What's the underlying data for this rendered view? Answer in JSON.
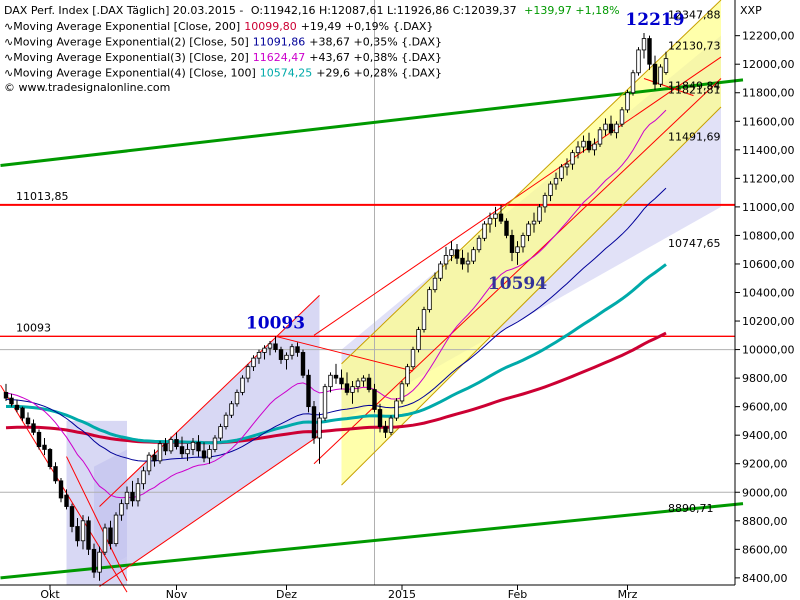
{
  "header": {
    "line1": {
      "name": "DAX Perf. Index [.DAX Täglich] 20.03.2015 -",
      "ohlc": "O:11942,16 H:12087,61 L:11926,86 C:12039,37",
      "chg": "+139,97 +1,18%"
    },
    "indicators": [
      {
        "label": "∿Moving Average Exponential [Close, 200]",
        "value": "10099,80",
        "chg": "+19,49 +0,19% {.DAX}",
        "color": "#cc0033"
      },
      {
        "label": "∿Moving Average Exponential(2) [Close, 50]",
        "value": "11091,86",
        "chg": "+38,67 +0,35% {.DAX}",
        "color": "#000099"
      },
      {
        "label": "∿Moving Average Exponential(3) [Close, 20]",
        "value": "11624,47",
        "chg": "+43,67 +0,38% {.DAX}",
        "color": "#cc00cc"
      },
      {
        "label": "∿Moving Average Exponential(4) [Close, 100]",
        "value": "10574,25",
        "chg": "+29,6 +0,28% {.DAX}",
        "color": "#00aaaa"
      }
    ],
    "source": "© www.tradesignalonline.com"
  },
  "chart_data": {
    "type": "candlestick",
    "y_axis_label": "XXP",
    "ylim": [
      8350,
      12450
    ],
    "y_ticks": [
      {
        "v": 8400,
        "label": "8400,00"
      },
      {
        "v": 8600,
        "label": "8600,00"
      },
      {
        "v": 8800,
        "label": "8800,00"
      },
      {
        "v": 9000,
        "label": "9000,00"
      },
      {
        "v": 9200,
        "label": "9200,00"
      },
      {
        "v": 9400,
        "label": "9400,00"
      },
      {
        "v": 9600,
        "label": "9600,00"
      },
      {
        "v": 9800,
        "label": "9800,00"
      },
      {
        "v": 10000,
        "label": "10000,00"
      },
      {
        "v": 10200,
        "label": "10200,00"
      },
      {
        "v": 10400,
        "label": "10400,00"
      },
      {
        "v": 10600,
        "label": "10600,00"
      },
      {
        "v": 10800,
        "label": "10800,00"
      },
      {
        "v": 11000,
        "label": "11000,00"
      },
      {
        "v": 11200,
        "label": "11200,00"
      },
      {
        "v": 11400,
        "label": "11400,00"
      },
      {
        "v": 11600,
        "label": "11600,00"
      },
      {
        "v": 11800,
        "label": "11800,00"
      },
      {
        "v": 12000,
        "label": "12000,00"
      },
      {
        "v": 12200,
        "label": "12200,00"
      }
    ],
    "x_labels": [
      {
        "i": 8,
        "label": "Okt"
      },
      {
        "i": 31,
        "label": "Nov"
      },
      {
        "i": 51,
        "label": "Dez"
      },
      {
        "i": 72,
        "label": "2015"
      },
      {
        "i": 93,
        "label": "Feb"
      },
      {
        "i": 113,
        "label": "Mrz"
      }
    ],
    "candles": [
      [
        9700,
        9760,
        9640,
        9660
      ],
      [
        9660,
        9690,
        9600,
        9620
      ],
      [
        9610,
        9650,
        9560,
        9580
      ],
      [
        9590,
        9600,
        9500,
        9520
      ],
      [
        9520,
        9560,
        9460,
        9480
      ],
      [
        9480,
        9510,
        9400,
        9420
      ],
      [
        9420,
        9440,
        9300,
        9320
      ],
      [
        9330,
        9380,
        9260,
        9300
      ],
      [
        9300,
        9310,
        9160,
        9180
      ],
      [
        9180,
        9210,
        9060,
        9080
      ],
      [
        9080,
        9100,
        8930,
        8960
      ],
      [
        8980,
        9020,
        8880,
        8900
      ],
      [
        8900,
        8920,
        8720,
        8760
      ],
      [
        8760,
        8820,
        8620,
        8660
      ],
      [
        8660,
        8840,
        8600,
        8800
      ],
      [
        8800,
        8830,
        8560,
        8600
      ],
      [
        8600,
        8640,
        8400,
        8440
      ],
      [
        8440,
        8620,
        8380,
        8580
      ],
      [
        8580,
        8780,
        8560,
        8750
      ],
      [
        8750,
        8800,
        8600,
        8640
      ],
      [
        8640,
        8860,
        8620,
        8840
      ],
      [
        8840,
        8950,
        8800,
        8920
      ],
      [
        8920,
        9040,
        8880,
        9000
      ],
      [
        9000,
        9080,
        8900,
        8940
      ],
      [
        8940,
        9100,
        8900,
        9060
      ],
      [
        9060,
        9180,
        9020,
        9150
      ],
      [
        9150,
        9280,
        9120,
        9260
      ],
      [
        9260,
        9300,
        9180,
        9220
      ],
      [
        9220,
        9360,
        9200,
        9340
      ],
      [
        9340,
        9380,
        9260,
        9290
      ],
      [
        9290,
        9390,
        9270,
        9370
      ],
      [
        9370,
        9420,
        9300,
        9320
      ],
      [
        9320,
        9390,
        9240,
        9270
      ],
      [
        9270,
        9340,
        9220,
        9300
      ],
      [
        9300,
        9380,
        9260,
        9350
      ],
      [
        9350,
        9400,
        9250,
        9290
      ],
      [
        9290,
        9350,
        9210,
        9240
      ],
      [
        9240,
        9330,
        9200,
        9300
      ],
      [
        9300,
        9400,
        9280,
        9380
      ],
      [
        9380,
        9480,
        9360,
        9460
      ],
      [
        9460,
        9560,
        9440,
        9540
      ],
      [
        9540,
        9640,
        9520,
        9620
      ],
      [
        9620,
        9720,
        9600,
        9700
      ],
      [
        9700,
        9820,
        9680,
        9800
      ],
      [
        9800,
        9900,
        9770,
        9880
      ],
      [
        9880,
        9960,
        9850,
        9940
      ],
      [
        9940,
        10000,
        9900,
        9980
      ],
      [
        9980,
        10030,
        9930,
        10010
      ],
      [
        10010,
        10060,
        9960,
        10040
      ],
      [
        10040,
        10093,
        9980,
        10000
      ],
      [
        10000,
        10020,
        9900,
        9930
      ],
      [
        9930,
        9980,
        9860,
        9960
      ],
      [
        9960,
        10040,
        9930,
        10020
      ],
      [
        10020,
        10050,
        9950,
        9980
      ],
      [
        9980,
        10000,
        9800,
        9820
      ],
      [
        9820,
        9860,
        9560,
        9600
      ],
      [
        9600,
        9640,
        9340,
        9380
      ],
      [
        9380,
        9560,
        9200,
        9520
      ],
      [
        9520,
        9760,
        9500,
        9740
      ],
      [
        9740,
        9840,
        9700,
        9820
      ],
      [
        9820,
        9900,
        9760,
        9800
      ],
      [
        9800,
        9860,
        9720,
        9760
      ],
      [
        9760,
        9840,
        9680,
        9700
      ],
      [
        9700,
        9780,
        9620,
        9740
      ],
      [
        9740,
        9800,
        9700,
        9780
      ],
      [
        9780,
        9820,
        9740,
        9800
      ],
      [
        9800,
        9830,
        9700,
        9720
      ],
      [
        9720,
        9760,
        9560,
        9580
      ],
      [
        9580,
        9620,
        9420,
        9460
      ],
      [
        9460,
        9500,
        9380,
        9420
      ],
      [
        9420,
        9540,
        9400,
        9520
      ],
      [
        9520,
        9660,
        9500,
        9640
      ],
      [
        9640,
        9780,
        9620,
        9760
      ],
      [
        9760,
        9900,
        9740,
        9880
      ],
      [
        9880,
        10020,
        9860,
        10000
      ],
      [
        10000,
        10160,
        9980,
        10140
      ],
      [
        10140,
        10300,
        10120,
        10280
      ],
      [
        10280,
        10440,
        10260,
        10420
      ],
      [
        10420,
        10540,
        10400,
        10500
      ],
      [
        10500,
        10620,
        10480,
        10600
      ],
      [
        10600,
        10720,
        10560,
        10660
      ],
      [
        10660,
        10760,
        10620,
        10700
      ],
      [
        10700,
        10740,
        10600,
        10640
      ],
      [
        10640,
        10700,
        10560,
        10600
      ],
      [
        10600,
        10680,
        10540,
        10620
      ],
      [
        10620,
        10720,
        10600,
        10700
      ],
      [
        10700,
        10800,
        10680,
        10780
      ],
      [
        10780,
        10900,
        10760,
        10880
      ],
      [
        10880,
        10960,
        10820,
        10920
      ],
      [
        10920,
        11000,
        10860,
        10950
      ],
      [
        10950,
        11013,
        10880,
        10900
      ],
      [
        10900,
        10920,
        10780,
        10800
      ],
      [
        10800,
        10840,
        10620,
        10680
      ],
      [
        10680,
        10760,
        10594,
        10720
      ],
      [
        10720,
        10820,
        10680,
        10800
      ],
      [
        10800,
        10900,
        10760,
        10880
      ],
      [
        10880,
        10960,
        10820,
        10900
      ],
      [
        10900,
        11020,
        10880,
        11000
      ],
      [
        11000,
        11100,
        10960,
        11080
      ],
      [
        11080,
        11180,
        11040,
        11160
      ],
      [
        11160,
        11240,
        11120,
        11200
      ],
      [
        11200,
        11300,
        11180,
        11280
      ],
      [
        11280,
        11340,
        11220,
        11300
      ],
      [
        11300,
        11400,
        11260,
        11380
      ],
      [
        11380,
        11460,
        11340,
        11420
      ],
      [
        11420,
        11500,
        11380,
        11460
      ],
      [
        11460,
        11520,
        11380,
        11400
      ],
      [
        11400,
        11480,
        11360,
        11440
      ],
      [
        11440,
        11560,
        11420,
        11540
      ],
      [
        11540,
        11620,
        11500,
        11580
      ],
      [
        11580,
        11640,
        11500,
        11520
      ],
      [
        11520,
        11600,
        11480,
        11580
      ],
      [
        11580,
        11700,
        11560,
        11680
      ],
      [
        11680,
        11820,
        11660,
        11800
      ],
      [
        11800,
        11960,
        11780,
        11940
      ],
      [
        11940,
        12120,
        11920,
        12100
      ],
      [
        12100,
        12219,
        12040,
        12180
      ],
      [
        12180,
        12200,
        11960,
        12000
      ],
      [
        12000,
        12060,
        11820,
        11860
      ],
      [
        11860,
        12000,
        11840,
        11980
      ],
      [
        11942,
        12087,
        11926,
        12039
      ]
    ],
    "levels": [
      {
        "name": "res-11013",
        "value": 11013.85,
        "label": "11013,85",
        "color": "#ff0000"
      },
      {
        "name": "res-10093",
        "value": 10093,
        "label": "10093",
        "color": "#ff0000"
      }
    ],
    "side_labels": [
      {
        "value": 12347.88,
        "label": "12347,88"
      },
      {
        "value": 12130.73,
        "label": "12130,73"
      },
      {
        "value": 11849.84,
        "label": "11849,84"
      },
      {
        "value": 11821.81,
        "label": "11821,81"
      },
      {
        "value": 11491.69,
        "label": "11491,69"
      },
      {
        "value": 10747.65,
        "label": "10747,65"
      },
      {
        "value": 8890.71,
        "label": "8890,71"
      }
    ],
    "annotations": [
      {
        "label": "12219",
        "i": 118,
        "value": 12219,
        "color": "#0000cc"
      },
      {
        "label": "10093",
        "i": 49,
        "value": 10093,
        "color": "#0000cc"
      },
      {
        "label": "10594",
        "i": 93,
        "value": 10594,
        "color": "#333399"
      }
    ],
    "colors": {
      "bull_candle": "#ffffff",
      "bear_candle": "#000000",
      "candle_outline": "#000000",
      "ema200": "#cc0033",
      "ema50": "#000099",
      "ema20": "#cc00cc",
      "ema100": "#00aaaa",
      "trend_green": "#009900",
      "channel_red": "#ff0000",
      "channel_fill_blue": "#c8c8f0",
      "channel_fill_yellow": "#ffff88"
    }
  }
}
